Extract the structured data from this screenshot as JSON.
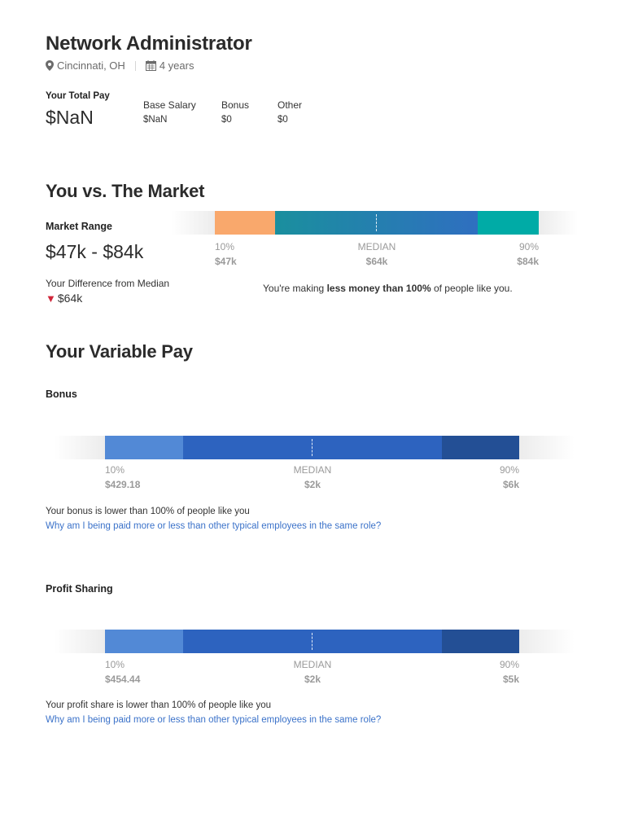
{
  "header": {
    "title": "Network Administrator",
    "location": "Cincinnati, OH",
    "experience": "4 years",
    "location_icon": "location-pin-icon",
    "experience_icon": "calendar-icon"
  },
  "total_pay": {
    "label": "Your Total Pay",
    "value": "$NaN",
    "breakdown": [
      {
        "label": "Base Salary",
        "value": "$NaN"
      },
      {
        "label": "Bonus",
        "value": "$0"
      },
      {
        "label": "Other",
        "value": "$0"
      }
    ]
  },
  "market": {
    "heading": "You vs. The Market",
    "range_label": "Market Range",
    "range_value": "$47k - $84k",
    "diff_label": "Your Difference from Median",
    "diff_value": "$64k",
    "diff_icon": "down-triangle-icon",
    "message_prefix": "You're making ",
    "message_bold": "less money than 100%",
    "message_suffix": " of people like you.",
    "ticks": [
      {
        "pct": "10%",
        "value": "$47k"
      },
      {
        "pct": "MEDIAN",
        "value": "$64k"
      },
      {
        "pct": "90%",
        "value": "$84k"
      }
    ],
    "colors": {
      "low": "#f9a86c",
      "mid_start": "#1a8f9e",
      "mid_end": "#2f6fc0",
      "high": "#00aba6"
    }
  },
  "variable_pay": {
    "heading": "Your Variable Pay",
    "bonus": {
      "title": "Bonus",
      "ticks": [
        {
          "pct": "10%",
          "value": "$429.18"
        },
        {
          "pct": "MEDIAN",
          "value": "$2k"
        },
        {
          "pct": "90%",
          "value": "$6k"
        }
      ],
      "note": "Your bonus is lower than 100% of people like you",
      "link": "Why am I being paid more or less than other typical employees in the same role?"
    },
    "profit_sharing": {
      "title": "Profit Sharing",
      "ticks": [
        {
          "pct": "10%",
          "value": "$454.44"
        },
        {
          "pct": "MEDIAN",
          "value": "$2k"
        },
        {
          "pct": "90%",
          "value": "$5k"
        }
      ],
      "note": "Your profit share is lower than 100% of people like you",
      "link": "Why am I being paid more or less than other typical employees in the same role?"
    },
    "colors": {
      "low": "#5289d6",
      "mid": "#2d63bf",
      "high": "#234f95"
    }
  }
}
